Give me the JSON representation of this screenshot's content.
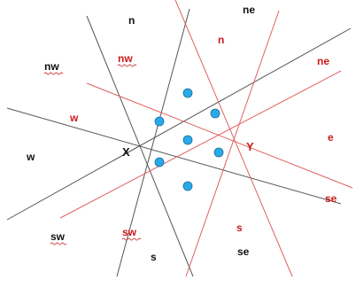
{
  "colors": {
    "black_lines": "#555555",
    "red_lines": "#e06060",
    "black_text": "#111111",
    "red_text": "#cc1a1a",
    "dot_fill": "#29a9e8",
    "dot_stroke": "#1c6f9c",
    "underline": "#d44040"
  },
  "origins": {
    "x": "X",
    "y": "Y"
  },
  "black_sector_labels": {
    "n": "n",
    "ne": "ne",
    "nw": "nw",
    "w": "w",
    "sw": "sw",
    "s": "s",
    "se": "se"
  },
  "red_sector_labels": {
    "n": "n",
    "ne": "ne",
    "nw": "nw",
    "w": "w",
    "e": "e",
    "se": "se",
    "sw": "sw",
    "s": "s"
  }
}
